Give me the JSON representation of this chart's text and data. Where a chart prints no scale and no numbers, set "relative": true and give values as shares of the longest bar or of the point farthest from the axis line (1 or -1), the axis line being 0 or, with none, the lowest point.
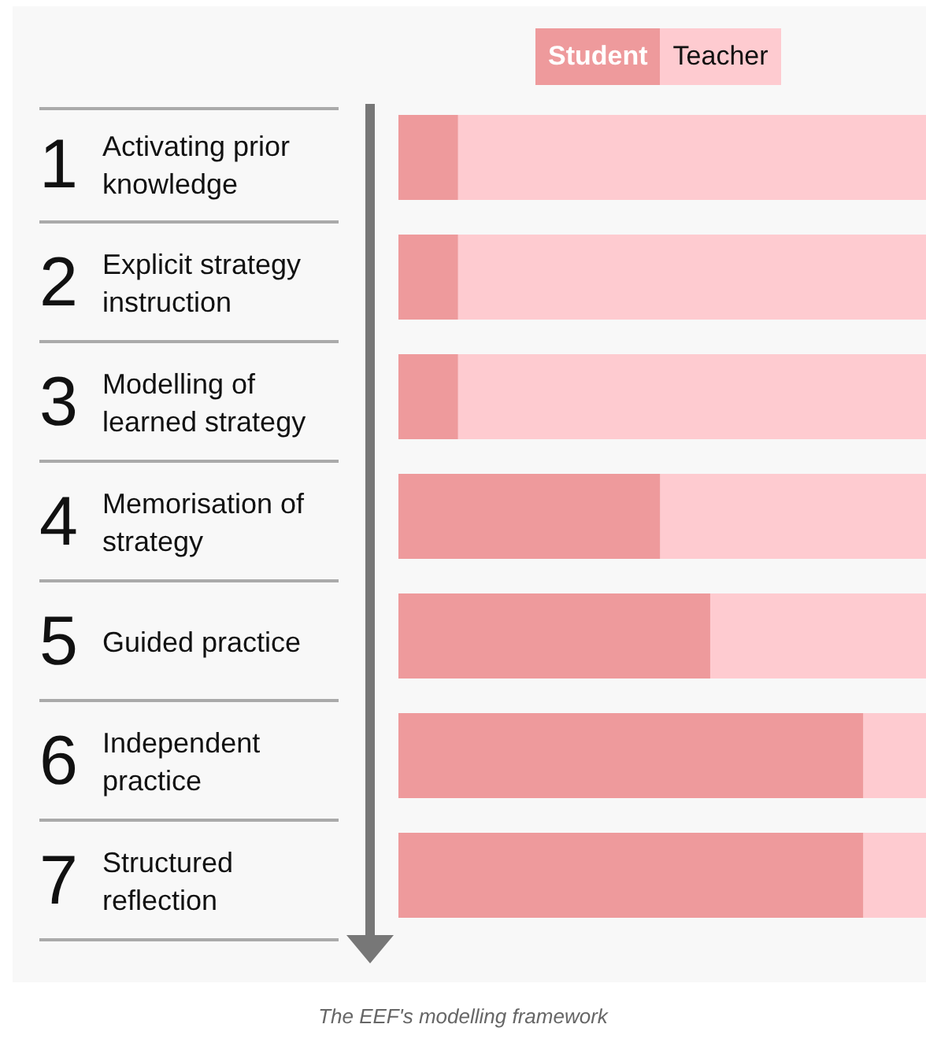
{
  "chart_data": {
    "type": "bar",
    "orientation": "horizontal",
    "stacked": true,
    "relative": true,
    "legend": "top right",
    "categories": [
      "1 Activating prior knowledge",
      "2 Explicit strategy instruction",
      "3 Modelling of learned strategy",
      "4 Memorisation of strategy",
      "5 Guided practice",
      "6 Independent practice",
      "7 Structured reflection"
    ],
    "series": [
      {
        "name": "Student",
        "color": "#ee9a9c",
        "values": [
          0.113,
          0.113,
          0.113,
          0.496,
          0.591,
          0.881,
          0.881
        ]
      },
      {
        "name": "Teacher",
        "color": "#fecbd0",
        "values": [
          0.887,
          0.887,
          0.887,
          0.504,
          0.409,
          0.119,
          0.119
        ]
      }
    ],
    "annotations": [
      "The EEF's modelling framework"
    ]
  }
}
